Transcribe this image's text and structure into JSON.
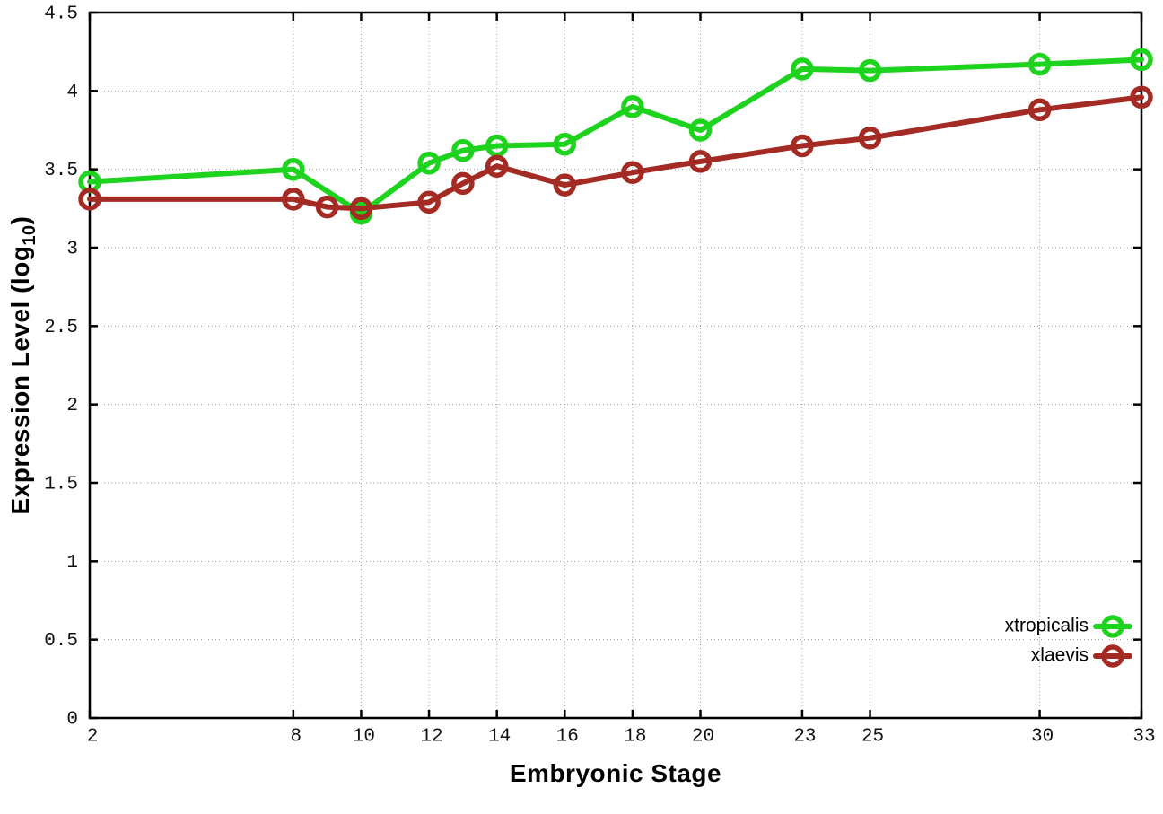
{
  "chart_data": {
    "type": "line",
    "title": "",
    "xlabel": "Embryonic Stage",
    "ylabel": "Expression Level (log10)",
    "ylabel_parts": {
      "pre": "Expression Level (log",
      "sub": "10",
      "post": ")"
    },
    "xlim": [
      2,
      33
    ],
    "ylim": [
      0,
      4.5
    ],
    "grid": true,
    "xticks": [
      2,
      8,
      10,
      12,
      14,
      16,
      18,
      20,
      23,
      25,
      30,
      33
    ],
    "xtick_labels": [
      "2",
      "8",
      "10",
      "12",
      "14",
      "16",
      "18",
      "20",
      "23",
      "25",
      "30",
      "33"
    ],
    "yticks": [
      0,
      0.5,
      1,
      1.5,
      2,
      2.5,
      3,
      3.5,
      4,
      4.5
    ],
    "ytick_labels": [
      "0",
      "0.5",
      "1",
      "1.5",
      "2",
      "2.5",
      "3",
      "3.5",
      "4",
      "4.5"
    ],
    "series": [
      {
        "name": "xtropicalis",
        "color": "#1ed31e",
        "points": [
          [
            2,
            3.42
          ],
          [
            8,
            3.5
          ],
          [
            10,
            3.22
          ],
          [
            12,
            3.54
          ],
          [
            13,
            3.62
          ],
          [
            14,
            3.65
          ],
          [
            16,
            3.66
          ],
          [
            18,
            3.9
          ],
          [
            20,
            3.75
          ],
          [
            23,
            4.14
          ],
          [
            25,
            4.13
          ],
          [
            30,
            4.17
          ],
          [
            33,
            4.2
          ]
        ]
      },
      {
        "name": "xlaevis",
        "color": "#a42b24",
        "points": [
          [
            2,
            3.31
          ],
          [
            8,
            3.31
          ],
          [
            9,
            3.26
          ],
          [
            10,
            3.25
          ],
          [
            12,
            3.29
          ],
          [
            13,
            3.41
          ],
          [
            14,
            3.52
          ],
          [
            16,
            3.4
          ],
          [
            18,
            3.48
          ],
          [
            20,
            3.55
          ],
          [
            23,
            3.65
          ],
          [
            25,
            3.7
          ],
          [
            30,
            3.88
          ],
          [
            33,
            3.96
          ]
        ]
      }
    ],
    "marker": "open-circle",
    "legend_position": "inside-bottom-right"
  },
  "legend": {
    "entries": [
      {
        "label": "xtropicalis",
        "color": "#1ed31e"
      },
      {
        "label": "xlaevis",
        "color": "#a42b24"
      }
    ]
  },
  "style_colors": {
    "grid": "#9a9a9a",
    "axis": "#000000",
    "background": "#ffffff"
  }
}
